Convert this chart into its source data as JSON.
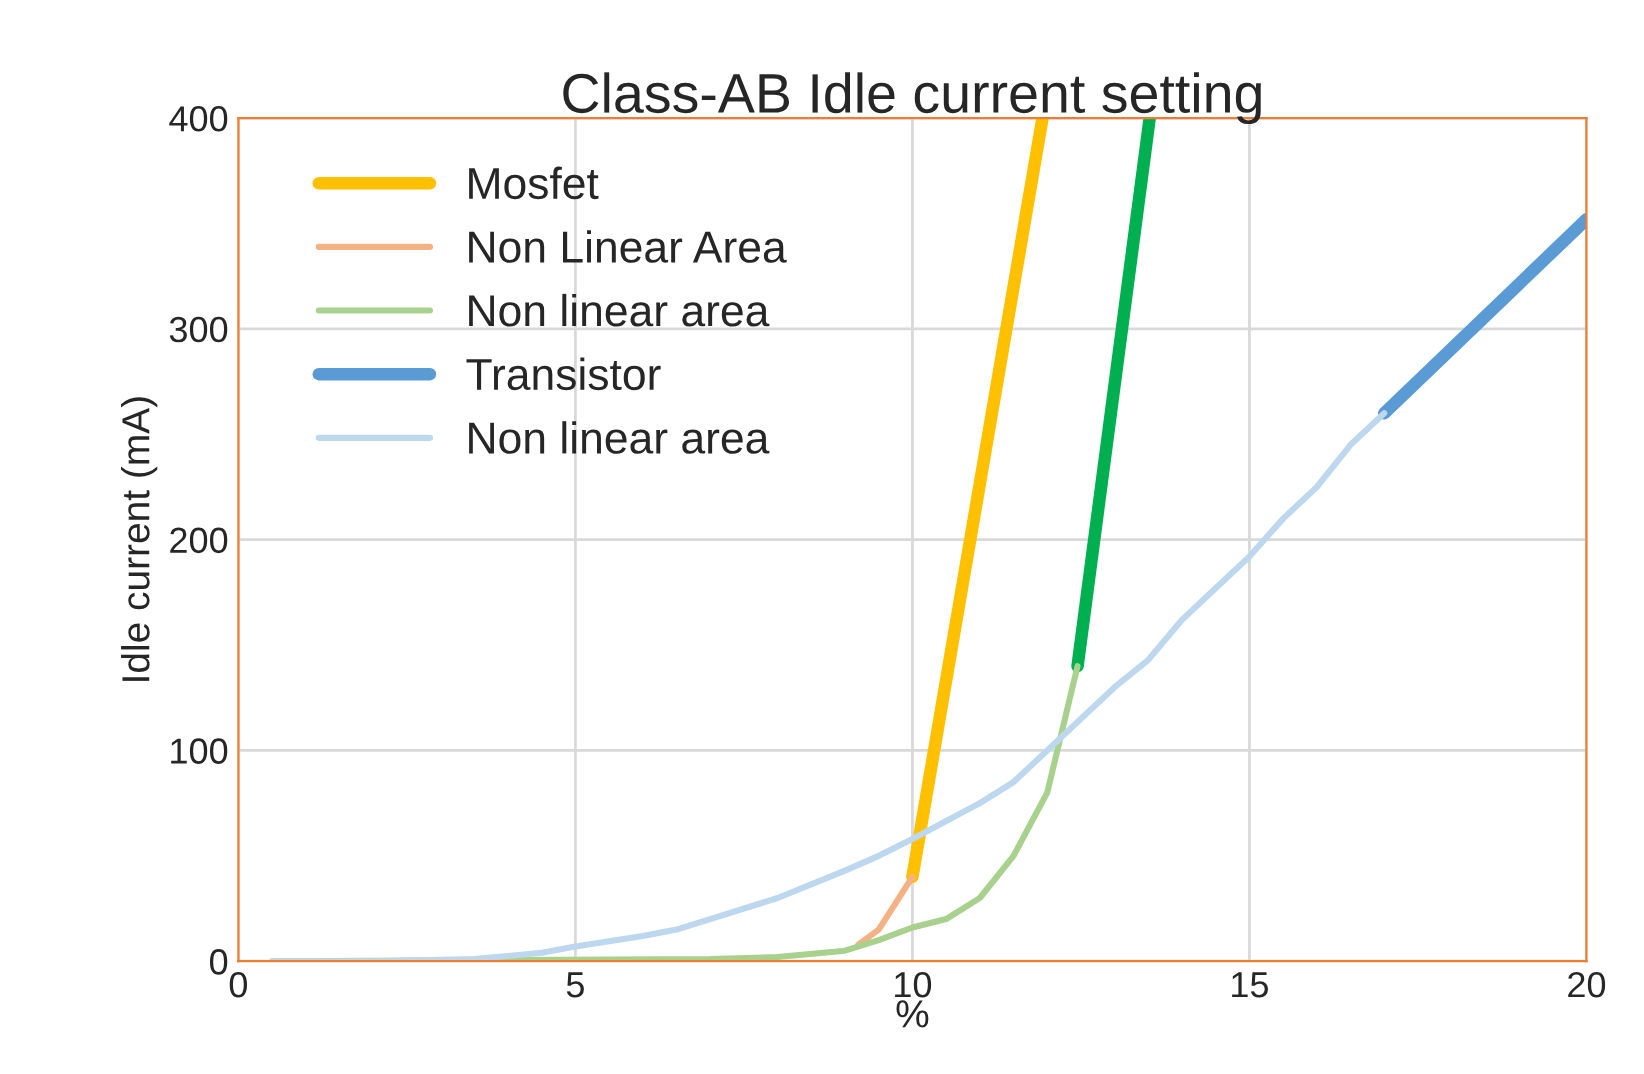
{
  "chart_data": {
    "type": "line",
    "title": "Class-AB Idle current setting",
    "xlabel": "%",
    "ylabel": "Idle current (mA)",
    "xlim": [
      0,
      20
    ],
    "ylim": [
      0,
      400
    ],
    "xticks": [
      0,
      5,
      10,
      15,
      20
    ],
    "yticks": [
      0,
      100,
      200,
      300,
      400
    ],
    "grid": true,
    "legend": "top left",
    "line_style": "solid",
    "marker": "none",
    "series": [
      {
        "name": "Mosfet",
        "color": "#ffc000",
        "x": [
          10,
          11.93
        ],
        "values": [
          40,
          400
        ]
      },
      {
        "name": "Non Linear Area",
        "color": "#f4b183",
        "x": [
          9.2,
          9.5,
          10
        ],
        "values": [
          8,
          15,
          40
        ]
      },
      {
        "color": "#00b050",
        "x": [
          12.45,
          13.52
        ],
        "values": [
          140,
          400
        ]
      },
      {
        "name": "Non linear area",
        "color": "#a9d18e",
        "x": [
          0.5,
          7,
          8,
          9,
          9.5,
          10,
          10.5,
          11,
          11.5,
          12,
          12.45
        ],
        "values": [
          0,
          1,
          2,
          5,
          10,
          16,
          20,
          30,
          50,
          80,
          140
        ]
      },
      {
        "name": "Transistor",
        "color": "#5b9bd5",
        "x": [
          17,
          20
        ],
        "values": [
          260,
          352
        ]
      },
      {
        "name": "Non linear area",
        "color": "#bdd7ee",
        "x": [
          0.5,
          2,
          3.5,
          4.5,
          5,
          6,
          6.5,
          7,
          8,
          9,
          9.5,
          10,
          11,
          11.5,
          12,
          12.5,
          13,
          13.5,
          14,
          15,
          15.5,
          16,
          16.5,
          17
        ],
        "values": [
          0,
          0,
          1,
          4,
          7,
          12,
          15,
          20,
          30,
          43,
          50,
          58,
          75,
          85,
          100,
          115,
          130,
          143,
          162,
          192,
          210,
          225,
          245,
          260
        ]
      }
    ]
  }
}
